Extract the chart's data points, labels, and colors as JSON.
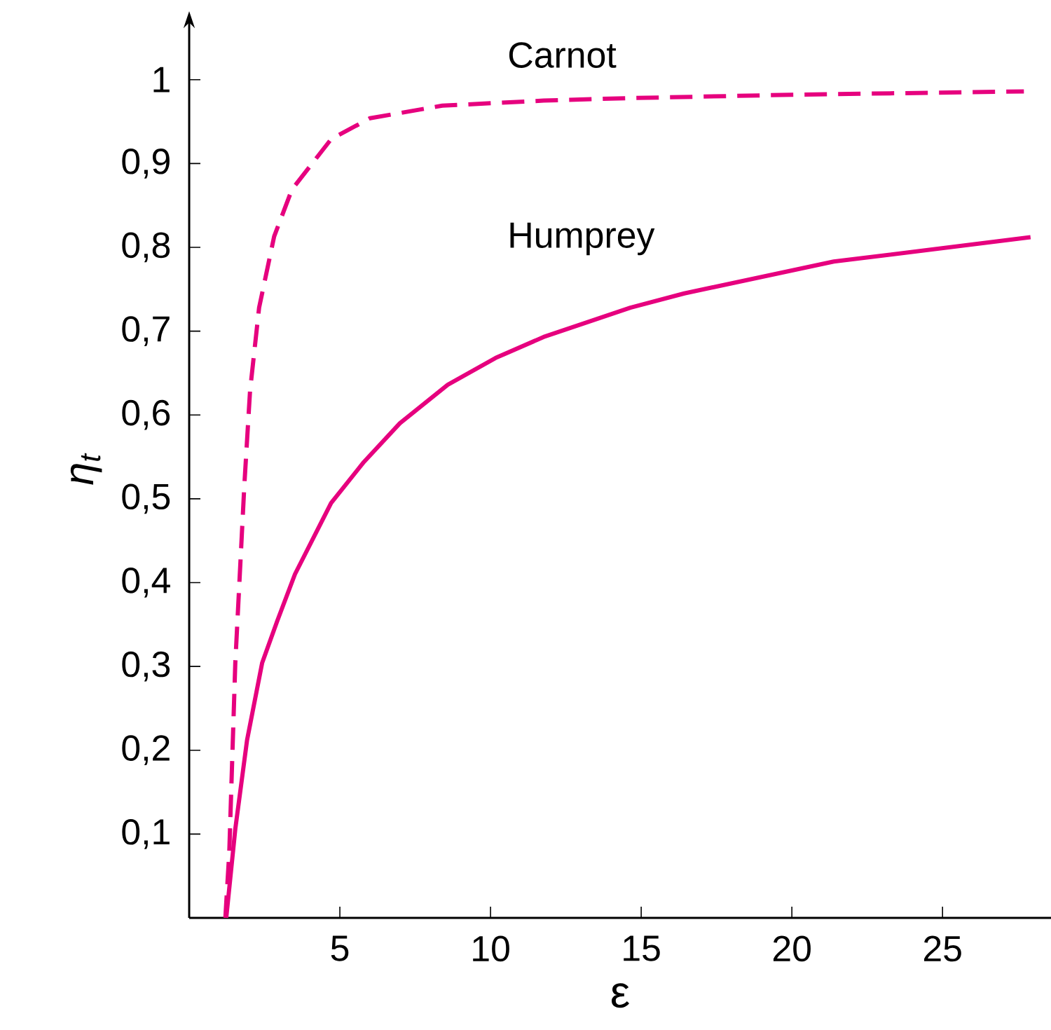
{
  "chart_data": {
    "type": "line",
    "xlabel": "ε",
    "ylabel": "η$_{t}$",
    "xlim": [
      0,
      28.6
    ],
    "ylim": [
      0,
      1.07
    ],
    "xticks": [
      5,
      10,
      15,
      20,
      25
    ],
    "yticks": [
      {
        "value": 0.1,
        "label": "0,1"
      },
      {
        "value": 0.2,
        "label": "0,2"
      },
      {
        "value": 0.3,
        "label": "0,3"
      },
      {
        "value": 0.4,
        "label": "0,4"
      },
      {
        "value": 0.5,
        "label": "0,5"
      },
      {
        "value": 0.6,
        "label": "0,6"
      },
      {
        "value": 0.7,
        "label": "0,7"
      },
      {
        "value": 0.8,
        "label": "0,8"
      },
      {
        "value": 0.9,
        "label": "0,9"
      },
      1
    ],
    "grid": false,
    "legend": false,
    "marker": "none",
    "series": [
      {
        "name": "Carnot",
        "color": "#e6007e",
        "line_style": "dashed",
        "x": [
          1.2,
          1.33,
          1.53,
          1.83,
          2.02,
          2.32,
          2.82,
          3.41,
          4.71,
          6.0,
          8.4,
          11.76,
          14.6,
          20,
          27.7
        ],
        "values": [
          0,
          0.078,
          0.304,
          0.516,
          0.629,
          0.728,
          0.813,
          0.869,
          0.929,
          0.954,
          0.969,
          0.975,
          0.978,
          0.982,
          0.986
        ]
      },
      {
        "name": "Humprey",
        "color": "#e6007e",
        "line_style": "solid",
        "x": [
          1.23,
          1.53,
          1.92,
          2.42,
          2.92,
          3.51,
          4.71,
          5.8,
          6.99,
          8.58,
          10.17,
          11.76,
          14.64,
          16.43,
          21.39,
          27.92
        ],
        "values": [
          0,
          0.106,
          0.212,
          0.304,
          0.354,
          0.41,
          0.495,
          0.544,
          0.59,
          0.636,
          0.668,
          0.693,
          0.728,
          0.745,
          0.783,
          0.812
        ]
      }
    ]
  }
}
